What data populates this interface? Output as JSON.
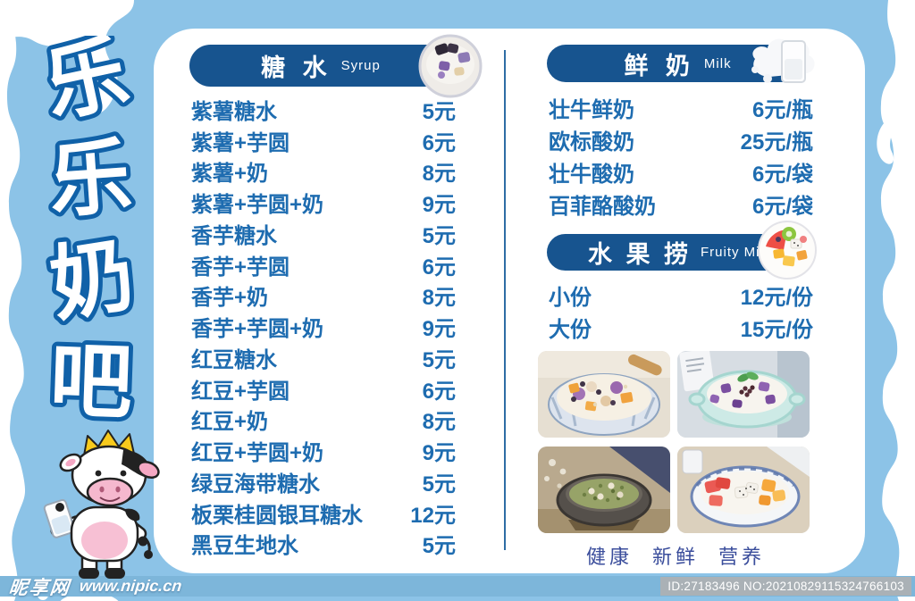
{
  "brand": {
    "chars": [
      "乐",
      "乐",
      "奶",
      "吧"
    ],
    "mascot": "crowned-cow-holding-milk-glass"
  },
  "menu": {
    "syrup": {
      "title_zh": "糖 水",
      "title_en": "Syrup",
      "icon": "bowl-of-taro-sweet-soup-photo",
      "items": [
        {
          "name": "紫薯糖水",
          "price": "5元"
        },
        {
          "name": "紫薯+芋圆",
          "price": "6元"
        },
        {
          "name": "紫薯+奶",
          "price": "8元"
        },
        {
          "name": "紫薯+芋圆+奶",
          "price": "9元"
        },
        {
          "name": "香芋糖水",
          "price": "5元"
        },
        {
          "name": "香芋+芋圆",
          "price": "6元"
        },
        {
          "name": "香芋+奶",
          "price": "8元"
        },
        {
          "name": "香芋+芋圆+奶",
          "price": "9元"
        },
        {
          "name": "红豆糖水",
          "price": "5元"
        },
        {
          "name": "红豆+芋圆",
          "price": "6元"
        },
        {
          "name": "红豆+奶",
          "price": "8元"
        },
        {
          "name": "红豆+芋圆+奶",
          "price": "9元"
        },
        {
          "name": "绿豆海带糖水",
          "price": "5元"
        },
        {
          "name": "板栗桂圆银耳糖水",
          "price": "12元"
        },
        {
          "name": "黑豆生地水",
          "price": "5元"
        }
      ]
    },
    "milk": {
      "title_zh": "鲜 奶",
      "title_en": "Milk",
      "icon": "milk-splash-glass-photo",
      "items": [
        {
          "name": "壮牛鲜奶",
          "price": "6元/瓶"
        },
        {
          "name": "欧标酸奶",
          "price": "25元/瓶"
        },
        {
          "name": "壮牛酸奶",
          "price": "6元/袋"
        },
        {
          "name": "百菲酪酸奶",
          "price": "6元/袋"
        }
      ]
    },
    "fruity": {
      "title_zh": "水 果 捞",
      "title_en": "Fruity Mix",
      "icon": "fruit-bowl-photo",
      "items": [
        {
          "name": "小份",
          "price": "12元/份"
        },
        {
          "name": "大份",
          "price": "15元/份"
        }
      ]
    }
  },
  "photos": [
    {
      "desc": "taro balls, mango cubes and beans in milk, blue striped bowl with wooden spoon"
    },
    {
      "desc": "purple taro chunks and red beans in milk, teal bowl with mint leaf"
    },
    {
      "desc": "mung bean and lotus seed sweet soup in dark clay pot"
    },
    {
      "desc": "watermelon, mango and dragon fruit in milk, blue patterned bowl"
    }
  ],
  "caption": {
    "words": [
      "健康",
      "新鲜",
      "营养"
    ]
  },
  "watermark": {
    "site": "昵享网",
    "url": "www.nipic.cn",
    "serial": "ID:27183496 NO:20210829115324766103"
  },
  "colors": {
    "background": "#8cc3e7",
    "pill": "#17548f",
    "ink": "#1e6cb0",
    "divider": "#2e6da4",
    "caption": "#3b4e9c",
    "title_outline": "#1061a8",
    "strip": "#7db6da"
  }
}
